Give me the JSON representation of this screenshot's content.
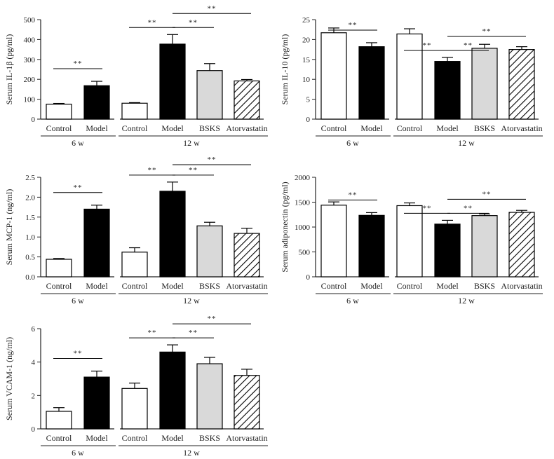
{
  "figure": {
    "group_labels": {
      "early": "6 w",
      "late": "12 w"
    },
    "significance_marker": "**",
    "colors": {
      "axis": "#222222",
      "control": "#ffffff",
      "model": "#000000",
      "bsks": "#d9d9d9",
      "atorvastatin": "#ffffff"
    }
  },
  "chart_data": [
    {
      "type": "bar",
      "id": "il1b",
      "ylabel": "Serum IL-1β (pg/ml)",
      "ylim": [
        0,
        500
      ],
      "yticks": [
        "0",
        "100",
        "200",
        "300",
        "400",
        "500"
      ],
      "categories": [
        "Control",
        "Model",
        "Control",
        "Model",
        "BSKS",
        "Atorvastatin"
      ],
      "groups": [
        "6 w",
        "6 w",
        "12 w",
        "12 w",
        "12 w",
        "12 w"
      ],
      "fills": [
        "white",
        "black",
        "white",
        "black",
        "gray",
        "hatch"
      ],
      "values": [
        75,
        168,
        80,
        377,
        244,
        192
      ],
      "errors": [
        4,
        22,
        3,
        48,
        35,
        7
      ],
      "significance": [
        [
          0,
          1
        ],
        [
          2,
          3
        ],
        [
          3,
          4
        ],
        [
          3,
          5
        ]
      ]
    },
    {
      "type": "bar",
      "id": "il10",
      "ylabel": "Serum IL-10 (pg/ml)",
      "ylim": [
        0,
        25
      ],
      "yticks": [
        "0",
        "5",
        "10",
        "15",
        "20",
        "25"
      ],
      "categories": [
        "Control",
        "Model",
        "Control",
        "Model",
        "BSKS",
        "Atorvastatin"
      ],
      "groups": [
        "6 w",
        "6 w",
        "12 w",
        "12 w",
        "12 w",
        "12 w"
      ],
      "fills": [
        "white",
        "black",
        "white",
        "black",
        "gray",
        "hatch"
      ],
      "values": [
        21.7,
        18.2,
        21.4,
        14.5,
        17.8,
        17.5
      ],
      "errors": [
        1.2,
        1.0,
        1.3,
        1.0,
        1.0,
        0.7
      ],
      "significance": [
        [
          0,
          1
        ],
        [
          2,
          3
        ],
        [
          3,
          4
        ],
        [
          3,
          5
        ]
      ]
    },
    {
      "type": "bar",
      "id": "mcp1",
      "ylabel": "Serum MCP-1 (ng/ml)",
      "ylim": [
        0,
        2.5
      ],
      "yticks": [
        "0.0",
        "0.5",
        "1.0",
        "1.5",
        "2.0",
        "2.5"
      ],
      "categories": [
        "Control",
        "Model",
        "Control",
        "Model",
        "BSKS",
        "Atorvastatin"
      ],
      "groups": [
        "6 w",
        "6 w",
        "12 w",
        "12 w",
        "12 w",
        "12 w"
      ],
      "fills": [
        "white",
        "black",
        "white",
        "black",
        "gray",
        "hatch"
      ],
      "values": [
        0.44,
        1.7,
        0.62,
        2.15,
        1.28,
        1.09
      ],
      "errors": [
        0.02,
        0.1,
        0.11,
        0.23,
        0.09,
        0.13
      ],
      "significance": [
        [
          0,
          1
        ],
        [
          2,
          3
        ],
        [
          3,
          4
        ],
        [
          3,
          5
        ]
      ]
    },
    {
      "type": "bar",
      "id": "adiponectin",
      "ylabel": "Serum adiponectin (pg/ml)",
      "ylim": [
        0,
        2000
      ],
      "yticks": [
        "0",
        "500",
        "1000",
        "1500",
        "2000"
      ],
      "categories": [
        "Control",
        "Model",
        "Control",
        "Model",
        "BSKS",
        "Atorvastatin"
      ],
      "groups": [
        "6 w",
        "6 w",
        "12 w",
        "12 w",
        "12 w",
        "12 w"
      ],
      "fills": [
        "white",
        "black",
        "white",
        "black",
        "gray",
        "hatch"
      ],
      "values": [
        1440,
        1235,
        1430,
        1060,
        1230,
        1295
      ],
      "errors": [
        65,
        55,
        55,
        75,
        35,
        40
      ],
      "significance": [
        [
          0,
          1
        ],
        [
          2,
          3
        ],
        [
          3,
          4
        ],
        [
          3,
          5
        ]
      ]
    },
    {
      "type": "bar",
      "id": "vcam1",
      "ylabel": "Serum VCAM-1 (ng/ml)",
      "ylim": [
        0,
        6
      ],
      "yticks": [
        "0",
        "2",
        "4",
        "6"
      ],
      "categories": [
        "Control",
        "Model",
        "Control",
        "Model",
        "BSKS",
        "Atorvastatin"
      ],
      "groups": [
        "6 w",
        "6 w",
        "12 w",
        "12 w",
        "12 w",
        "12 w"
      ],
      "fills": [
        "white",
        "black",
        "white",
        "black",
        "gray",
        "hatch"
      ],
      "values": [
        1.05,
        3.1,
        2.42,
        4.6,
        3.9,
        3.2
      ],
      "errors": [
        0.22,
        0.36,
        0.32,
        0.43,
        0.38,
        0.37
      ],
      "significance": [
        [
          0,
          1
        ],
        [
          2,
          3
        ],
        [
          3,
          4
        ],
        [
          3,
          5
        ]
      ]
    }
  ]
}
